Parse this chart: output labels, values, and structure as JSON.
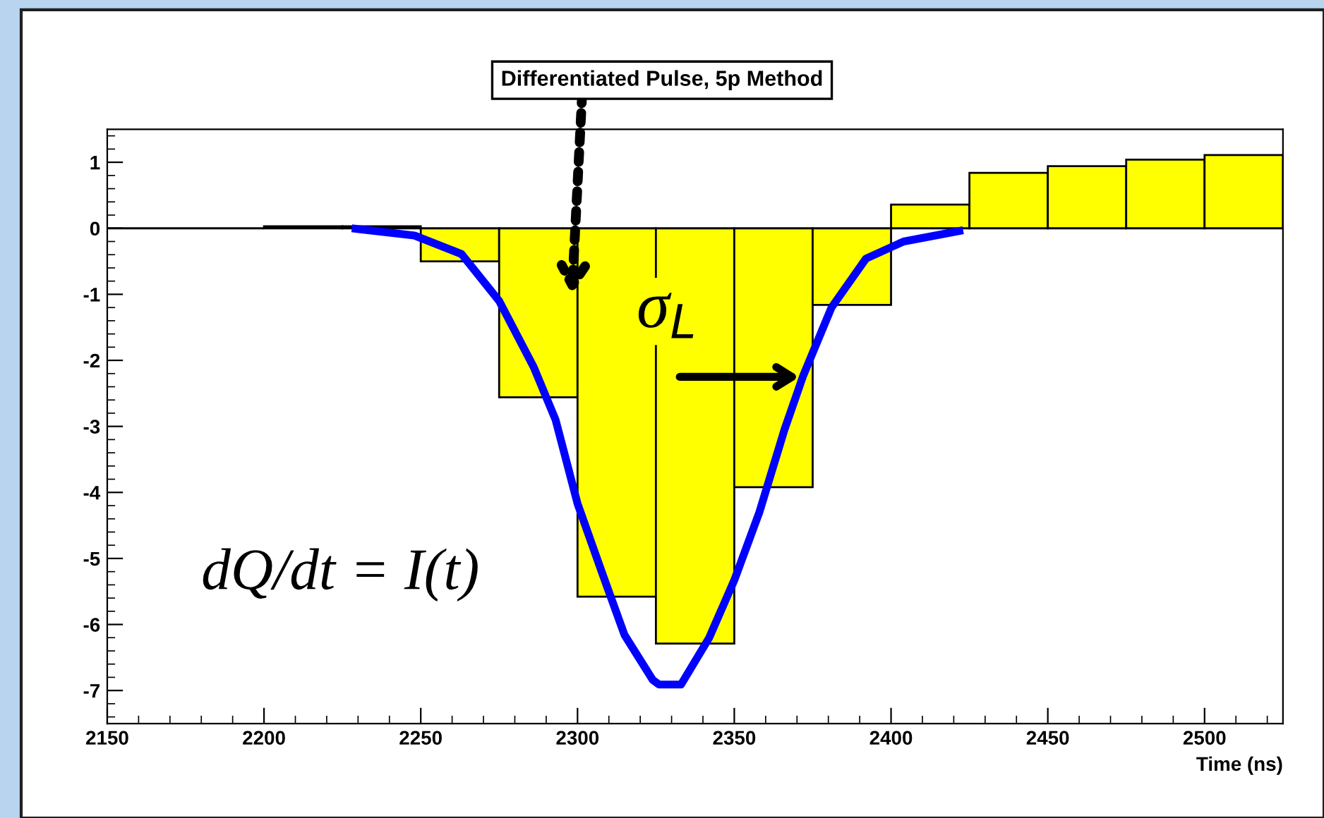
{
  "chart_data": {
    "type": "histogram",
    "title": "Differentiated Pulse, 5p Method",
    "xlabel": "Time (ns)",
    "bins": [
      2150,
      2175,
      2200,
      2225,
      2250,
      2275,
      2300,
      2325,
      2350,
      2375,
      2400,
      2425,
      2450,
      2475,
      2500,
      2525
    ],
    "values": [
      0,
      0,
      0.03,
      0.03,
      -0.5,
      -2.56,
      -5.58,
      -6.29,
      -3.92,
      -1.16,
      0.36,
      0.84,
      0.94,
      1.04,
      1.11
    ],
    "colors": [
      "#000000",
      "#000000",
      "#ffff00",
      "#ffff00",
      "#ffff00",
      "#ffff00",
      "#ffff00",
      "#ffff00",
      "#ffff00",
      "#ffff00",
      "#ffff00",
      "#ffff00",
      "#ffff00",
      "#ffff00",
      "#ffff00"
    ],
    "series": [
      {
        "type": "line",
        "color": "#0000ff",
        "x": [
          2228,
          2248,
          2263,
          2275,
          2286,
          2293,
          2300,
          2308,
          2315,
          2324,
          2326,
          2333,
          2342,
          2350,
          2358,
          2366,
          2372,
          2381,
          2392,
          2404,
          2423
        ],
        "values": [
          0,
          -0.11,
          -0.39,
          -1.1,
          -2.1,
          -2.9,
          -4.17,
          -5.24,
          -6.16,
          -6.84,
          -6.91,
          -6.91,
          -6.2,
          -5.33,
          -4.3,
          -3.05,
          -2.23,
          -1.2,
          -0.46,
          -0.2,
          -0.03
        ]
      }
    ],
    "annotations": [
      {
        "text": "σ$_{L}$",
        "x": 2372,
        "y": -2.25
      },
      "dQ/dt = I(t)"
    ],
    "xlim": [
      2150,
      2525
    ],
    "ylim": [
      -7.5,
      1.5
    ],
    "xticks": [
      2150,
      2200,
      2250,
      2300,
      2350,
      2400,
      2450,
      2500
    ],
    "yticks": [
      -7,
      -6,
      -5,
      -4,
      -3,
      -2,
      -1,
      0,
      1
    ],
    "grid": false,
    "legend": false
  }
}
